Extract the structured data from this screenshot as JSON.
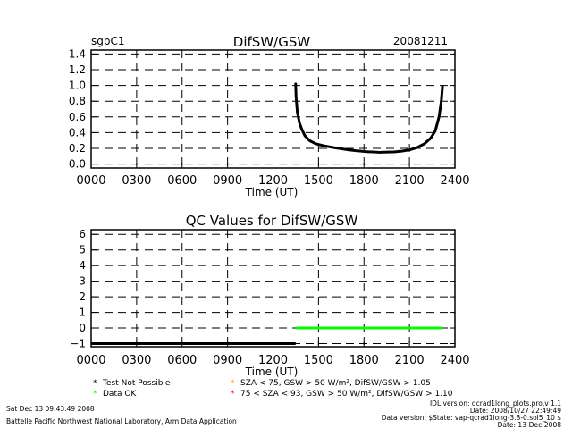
{
  "header": {
    "site": "sgpC1",
    "date": "20081211"
  },
  "chart_data": [
    {
      "type": "scatter",
      "title": "DifSW/GSW",
      "xlabel": "Time (UT)",
      "ylabel": "",
      "xlim": [
        0,
        2400
      ],
      "ylim": [
        -0.05,
        1.45
      ],
      "x_tick_labels": [
        "0000",
        "0300",
        "0600",
        "0900",
        "1200",
        "1500",
        "1800",
        "2100",
        "2400"
      ],
      "x_tick_values": [
        0,
        300,
        600,
        900,
        1200,
        1500,
        1800,
        2100,
        2400
      ],
      "y_tick_labels": [
        "0.0",
        "0.2",
        "0.4",
        "0.6",
        "0.8",
        "1.0",
        "1.2",
        "1.4"
      ],
      "y_tick_values": [
        0.0,
        0.2,
        0.4,
        0.6,
        0.8,
        1.0,
        1.2,
        1.4
      ],
      "grid": true,
      "series": [
        {
          "color": "#000000",
          "points": [
            [
              1349,
              1.02
            ],
            [
              1352,
              0.85
            ],
            [
              1360,
              0.66
            ],
            [
              1375,
              0.52
            ],
            [
              1390,
              0.44
            ],
            [
              1410,
              0.36
            ],
            [
              1440,
              0.3
            ],
            [
              1480,
              0.26
            ],
            [
              1530,
              0.235
            ],
            [
              1600,
              0.21
            ],
            [
              1700,
              0.18
            ],
            [
              1800,
              0.16
            ],
            [
              1900,
              0.15
            ],
            [
              2000,
              0.155
            ],
            [
              2050,
              0.165
            ],
            [
              2100,
              0.18
            ],
            [
              2150,
              0.21
            ],
            [
              2200,
              0.26
            ],
            [
              2240,
              0.33
            ],
            [
              2270,
              0.42
            ],
            [
              2295,
              0.6
            ],
            [
              2310,
              0.8
            ],
            [
              2318,
              0.99
            ]
          ]
        }
      ]
    },
    {
      "type": "scatter",
      "title": "QC Values for DifSW/GSW",
      "xlabel": "Time (UT)",
      "ylabel": "",
      "xlim": [
        0,
        2400
      ],
      "ylim": [
        -1.2,
        6.3
      ],
      "x_tick_labels": [
        "0000",
        "0300",
        "0600",
        "0900",
        "1200",
        "1500",
        "1800",
        "2100",
        "2400"
      ],
      "x_tick_values": [
        0,
        300,
        600,
        900,
        1200,
        1500,
        1800,
        2100,
        2400
      ],
      "y_tick_labels": [
        "−1",
        "0",
        "1",
        "2",
        "3",
        "4",
        "5",
        "6"
      ],
      "y_tick_values": [
        -1,
        0,
        1,
        2,
        3,
        4,
        5,
        6
      ],
      "grid": true,
      "series": [
        {
          "color": "#000000",
          "x": [
            0,
            1349
          ],
          "y": -1
        },
        {
          "color": "#00ff00",
          "x": [
            1349,
            2318
          ],
          "y": 0
        }
      ]
    }
  ],
  "legend": {
    "items": [
      {
        "marker": "*",
        "label": "Test Not Possible",
        "color": "#000000"
      },
      {
        "marker": "*",
        "label": "Data OK",
        "color": "#00ff00"
      },
      {
        "marker": "*",
        "label": "SZA < 75, GSW > 50 W/m², DifSW/GSW > 1.05",
        "color": "#ffa500"
      },
      {
        "marker": "*",
        "label": "75 < SZA < 93, GSW > 50 W/m², DifSW/GSW > 1.10",
        "color": "#ff0000"
      }
    ]
  },
  "footer": {
    "run_time": "Sat Dec 13 09:43:49 2008",
    "lab": "Battelle Pacific Northwest National Laboratory, Arm Data Application",
    "idl_version": "IDL version: qcrad1long_plots.pro,v 1.1",
    "idl_date": "Date: 2008/10/27 22:49:49",
    "data_version": "Data version: $State: vap-qcrad1long-3.8-0.sol5_10 $",
    "data_date": "Date: 13-Dec-2008"
  }
}
